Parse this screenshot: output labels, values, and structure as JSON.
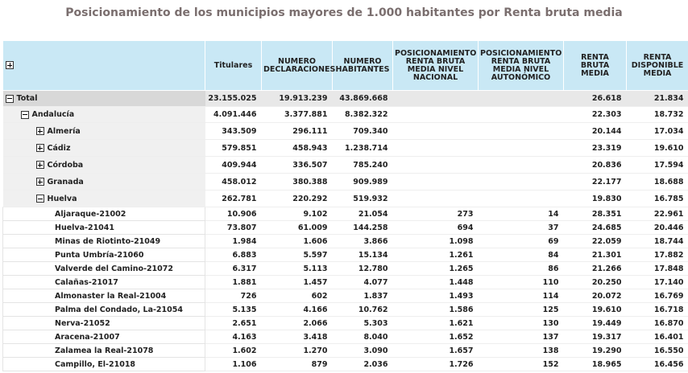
{
  "title": "Posicionamiento de los municipios mayores de 1.000 habitantes por Renta bruta media",
  "headers": {
    "expand": "+",
    "titulares": "Titulares",
    "declaraciones": "NUMERO DECLARACIONES",
    "habitantes": "NUMERO HABITANTES",
    "pos_nacional": "POSICIONAMIENTO RENTA BRUTA MEDIA NIVEL NACIONAL",
    "pos_autonomico": "POSICIONAMIENTO RENTA BRUTA MEDIA NIVEL AUTONÓMICO",
    "renta_bruta": "RENTA BRUTA MEDIA",
    "renta_disponible": "RENTA DISPONIBLE MEDIA"
  },
  "rows": [
    {
      "label": "Total",
      "level": "total",
      "toggle": "minus",
      "titulares": "23.155.025",
      "declaraciones": "19.913.239",
      "habitantes": "43.869.668",
      "pos_nacional": "",
      "pos_autonomico": "",
      "renta_bruta": "26.618",
      "renta_disponible": "21.834"
    },
    {
      "label": "Andalucía",
      "level": "level1",
      "toggle": "minus",
      "titulares": "4.091.446",
      "declaraciones": "3.377.881",
      "habitantes": "8.382.322",
      "pos_nacional": "",
      "pos_autonomico": "",
      "renta_bruta": "22.303",
      "renta_disponible": "18.732"
    },
    {
      "label": "Almería",
      "level": "level2",
      "toggle": "plus",
      "titulares": "343.509",
      "declaraciones": "296.111",
      "habitantes": "709.340",
      "pos_nacional": "",
      "pos_autonomico": "",
      "renta_bruta": "20.144",
      "renta_disponible": "17.034"
    },
    {
      "label": "Cádiz",
      "level": "level2",
      "toggle": "plus",
      "titulares": "579.851",
      "declaraciones": "458.943",
      "habitantes": "1.238.714",
      "pos_nacional": "",
      "pos_autonomico": "",
      "renta_bruta": "23.319",
      "renta_disponible": "19.610"
    },
    {
      "label": "Córdoba",
      "level": "level2",
      "toggle": "plus",
      "titulares": "409.944",
      "declaraciones": "336.507",
      "habitantes": "785.240",
      "pos_nacional": "",
      "pos_autonomico": "",
      "renta_bruta": "20.836",
      "renta_disponible": "17.594"
    },
    {
      "label": "Granada",
      "level": "level2",
      "toggle": "plus",
      "titulares": "458.012",
      "declaraciones": "380.388",
      "habitantes": "909.989",
      "pos_nacional": "",
      "pos_autonomico": "",
      "renta_bruta": "22.177",
      "renta_disponible": "18.688"
    },
    {
      "label": "Huelva",
      "level": "level2",
      "toggle": "minus",
      "titulares": "262.781",
      "declaraciones": "220.292",
      "habitantes": "519.932",
      "pos_nacional": "",
      "pos_autonomico": "",
      "renta_bruta": "19.830",
      "renta_disponible": "16.785"
    },
    {
      "label": "Aljaraque-21002",
      "level": "muni",
      "toggle": "",
      "titulares": "10.906",
      "declaraciones": "9.102",
      "habitantes": "21.054",
      "pos_nacional": "273",
      "pos_autonomico": "14",
      "renta_bruta": "28.351",
      "renta_disponible": "22.961"
    },
    {
      "label": "Huelva-21041",
      "level": "muni",
      "toggle": "",
      "titulares": "73.807",
      "declaraciones": "61.009",
      "habitantes": "144.258",
      "pos_nacional": "694",
      "pos_autonomico": "37",
      "renta_bruta": "24.685",
      "renta_disponible": "20.446"
    },
    {
      "label": "Minas de Riotinto-21049",
      "level": "muni",
      "toggle": "",
      "titulares": "1.984",
      "declaraciones": "1.606",
      "habitantes": "3.866",
      "pos_nacional": "1.098",
      "pos_autonomico": "69",
      "renta_bruta": "22.059",
      "renta_disponible": "18.744"
    },
    {
      "label": "Punta Umbría-21060",
      "level": "muni",
      "toggle": "",
      "titulares": "6.883",
      "declaraciones": "5.597",
      "habitantes": "15.134",
      "pos_nacional": "1.261",
      "pos_autonomico": "84",
      "renta_bruta": "21.301",
      "renta_disponible": "17.882"
    },
    {
      "label": "Valverde del Camino-21072",
      "level": "muni",
      "toggle": "",
      "titulares": "6.317",
      "declaraciones": "5.113",
      "habitantes": "12.780",
      "pos_nacional": "1.265",
      "pos_autonomico": "86",
      "renta_bruta": "21.266",
      "renta_disponible": "17.848"
    },
    {
      "label": "Calañas-21017",
      "level": "muni",
      "toggle": "",
      "titulares": "1.881",
      "declaraciones": "1.457",
      "habitantes": "4.077",
      "pos_nacional": "1.448",
      "pos_autonomico": "110",
      "renta_bruta": "20.250",
      "renta_disponible": "17.140"
    },
    {
      "label": "Almonaster la Real-21004",
      "level": "muni",
      "toggle": "",
      "titulares": "726",
      "declaraciones": "602",
      "habitantes": "1.837",
      "pos_nacional": "1.493",
      "pos_autonomico": "114",
      "renta_bruta": "20.072",
      "renta_disponible": "16.769"
    },
    {
      "label": "Palma del Condado, La-21054",
      "level": "muni",
      "toggle": "",
      "titulares": "5.135",
      "declaraciones": "4.166",
      "habitantes": "10.762",
      "pos_nacional": "1.586",
      "pos_autonomico": "125",
      "renta_bruta": "19.610",
      "renta_disponible": "16.718"
    },
    {
      "label": "Nerva-21052",
      "level": "muni",
      "toggle": "",
      "titulares": "2.651",
      "declaraciones": "2.066",
      "habitantes": "5.303",
      "pos_nacional": "1.621",
      "pos_autonomico": "130",
      "renta_bruta": "19.449",
      "renta_disponible": "16.870"
    },
    {
      "label": "Aracena-21007",
      "level": "muni",
      "toggle": "",
      "titulares": "4.163",
      "declaraciones": "3.418",
      "habitantes": "8.040",
      "pos_nacional": "1.652",
      "pos_autonomico": "137",
      "renta_bruta": "19.317",
      "renta_disponible": "16.401"
    },
    {
      "label": "Zalamea la Real-21078",
      "level": "muni",
      "toggle": "",
      "titulares": "1.602",
      "declaraciones": "1.270",
      "habitantes": "3.090",
      "pos_nacional": "1.657",
      "pos_autonomico": "138",
      "renta_bruta": "19.290",
      "renta_disponible": "16.550"
    },
    {
      "label": "Campillo, El-21018",
      "level": "muni",
      "toggle": "",
      "titulares": "1.106",
      "declaraciones": "879",
      "habitantes": "2.036",
      "pos_nacional": "1.726",
      "pos_autonomico": "152",
      "renta_bruta": "18.965",
      "renta_disponible": "16.456"
    }
  ]
}
